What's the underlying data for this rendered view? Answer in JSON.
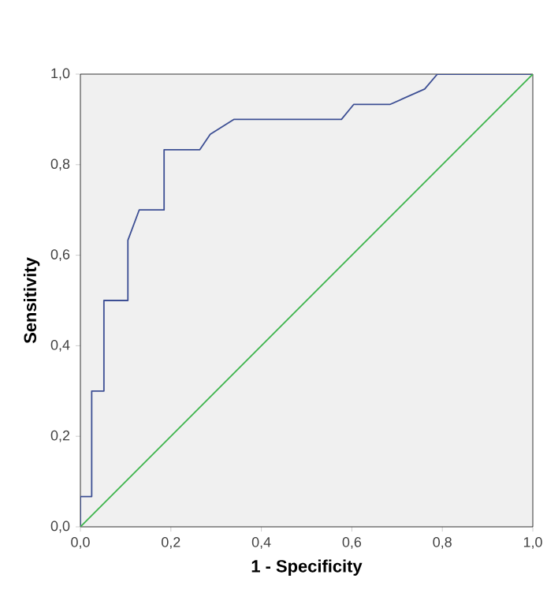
{
  "chart_data": {
    "type": "line",
    "xlabel": "1 - Specificity",
    "ylabel": "Sensitivity",
    "xlim": [
      0,
      1
    ],
    "ylim": [
      0,
      1
    ],
    "xticks": [
      {
        "value": 0,
        "label": "0,0"
      },
      {
        "value": 0.2,
        "label": "0,2"
      },
      {
        "value": 0.4,
        "label": "0,4"
      },
      {
        "value": 0.6,
        "label": "0,6"
      },
      {
        "value": 0.8,
        "label": "0,8"
      },
      {
        "value": 1,
        "label": "1,0"
      }
    ],
    "yticks": [
      {
        "value": 0,
        "label": "0,0"
      },
      {
        "value": 0.2,
        "label": "0,2"
      },
      {
        "value": 0.4,
        "label": "0,4"
      },
      {
        "value": 0.6,
        "label": "0,6"
      },
      {
        "value": 0.8,
        "label": "0,8"
      },
      {
        "value": 1,
        "label": "1,0"
      }
    ],
    "series": [
      {
        "color": "#3d4f94",
        "x": [
          0,
          0,
          0.025,
          0.025,
          0.052,
          0.052,
          0.105,
          0.105,
          0.13,
          0.185,
          0.185,
          0.264,
          0.287,
          0.339,
          0.577,
          0.604,
          0.684,
          0.761,
          0.789,
          1
        ],
        "values": [
          0,
          0.067,
          0.067,
          0.3,
          0.3,
          0.5,
          0.5,
          0.633,
          0.7,
          0.7,
          0.833,
          0.833,
          0.867,
          0.9,
          0.9,
          0.933,
          0.933,
          0.967,
          1,
          1
        ]
      },
      {
        "color": "#3cb44b",
        "x": [
          0,
          1
        ],
        "values": [
          0,
          1
        ]
      }
    ]
  }
}
